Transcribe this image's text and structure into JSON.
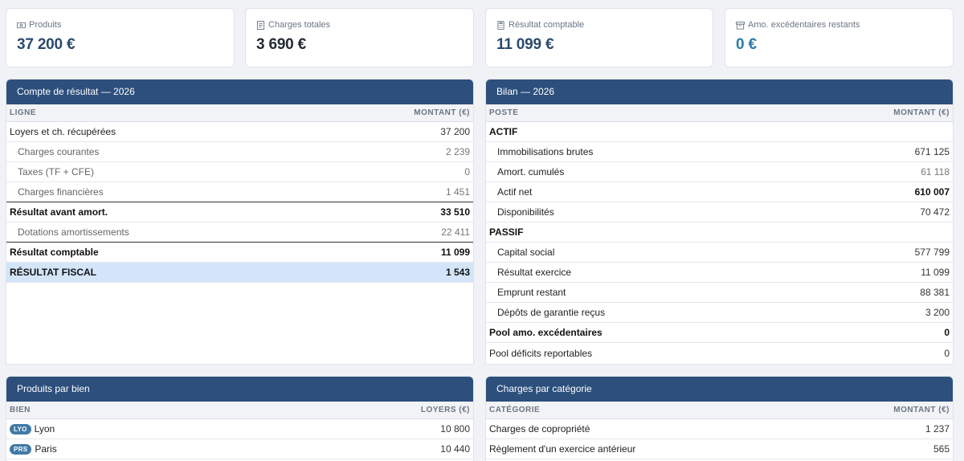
{
  "kpis": [
    {
      "label": "Produits",
      "value": "37 200 €",
      "icon": "cash-icon"
    },
    {
      "label": "Charges totales",
      "value": "3 690 €",
      "icon": "receipt-icon"
    },
    {
      "label": "Résultat comptable",
      "value": "11 099 €",
      "icon": "calculator-icon"
    },
    {
      "label": "Amo. excédentaires restants",
      "value": "0 €",
      "icon": "archive-icon"
    }
  ],
  "compte": {
    "title": "Compte de résultat — 2026",
    "col_label": "LIGNE",
    "col_value": "MONTANT (€)",
    "rows": [
      {
        "label": "Loyers et ch. récupérées",
        "value": "37 200"
      },
      {
        "label": "Charges courantes",
        "value": "2 239"
      },
      {
        "label": "Taxes (TF + CFE)",
        "value": "0"
      },
      {
        "label": "Charges financières",
        "value": "1 451"
      },
      {
        "label": "Résultat avant amort.",
        "value": "33 510"
      },
      {
        "label": "Dotations amortissements",
        "value": "22 411"
      },
      {
        "label": "Résultat comptable",
        "value": "11 099"
      },
      {
        "label": "RÉSULTAT FISCAL",
        "value": "1 543"
      }
    ]
  },
  "bilan": {
    "title": "Bilan — 2026",
    "col_label": "POSTE",
    "col_value": "MONTANT (€)",
    "rows": [
      {
        "label": "ACTIF",
        "value": ""
      },
      {
        "label": "Immobilisations brutes",
        "value": "671 125"
      },
      {
        "label": "Amort. cumulés",
        "value": "61 118"
      },
      {
        "label": "Actif net",
        "value": "610 007"
      },
      {
        "label": "Disponibilités",
        "value": "70 472"
      },
      {
        "label": "PASSIF",
        "value": ""
      },
      {
        "label": "Capital social",
        "value": "577 799"
      },
      {
        "label": "Résultat exercice",
        "value": "11 099"
      },
      {
        "label": "Emprunt restant",
        "value": "88 381"
      },
      {
        "label": "Dépôts de garantie reçus",
        "value": "3 200"
      },
      {
        "label": "Pool amo. excédentaires",
        "value": "0"
      },
      {
        "label": "Pool déficits reportables",
        "value": "0"
      }
    ]
  },
  "produits": {
    "title": "Produits par bien",
    "col_label": "BIEN",
    "col_value": "LOYERS (€)",
    "rows": [
      {
        "tag": "LYO",
        "label": "Lyon",
        "value": "10 800"
      },
      {
        "tag": "PRS",
        "label": "Paris",
        "value": "10 440"
      }
    ]
  },
  "charges": {
    "title": "Charges par catégorie",
    "col_label": "CATÉGORIE",
    "col_value": "MONTANT (€)",
    "rows": [
      {
        "label": "Charges de copropriété",
        "value": "1 237"
      },
      {
        "label": "Règlement d'un exercice antérieur",
        "value": "565"
      }
    ]
  }
}
